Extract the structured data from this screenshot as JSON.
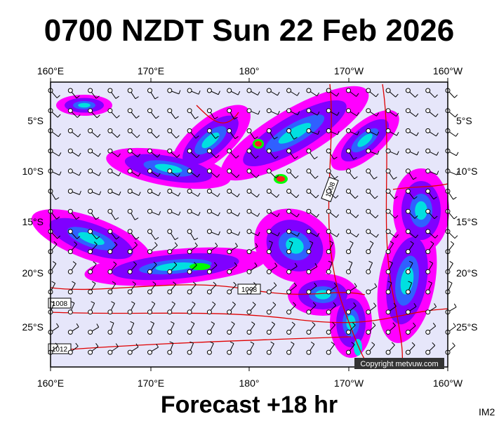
{
  "header": {
    "title": "0700 NZDT Sun 22 Feb 2026"
  },
  "map": {
    "longitude_labels": [
      "160°E",
      "170°E",
      "180°",
      "170°W",
      "160°W"
    ],
    "latitude_labels": [
      "5°S",
      "10°S",
      "15°S",
      "20°S",
      "25°S"
    ],
    "isobar_labels": [
      "1008",
      "1008",
      "1012",
      "1008"
    ],
    "copyright": "Copyright metvuw.com"
  },
  "footer": {
    "forecast": "Forecast +18 hr",
    "image_id": "IM2"
  }
}
